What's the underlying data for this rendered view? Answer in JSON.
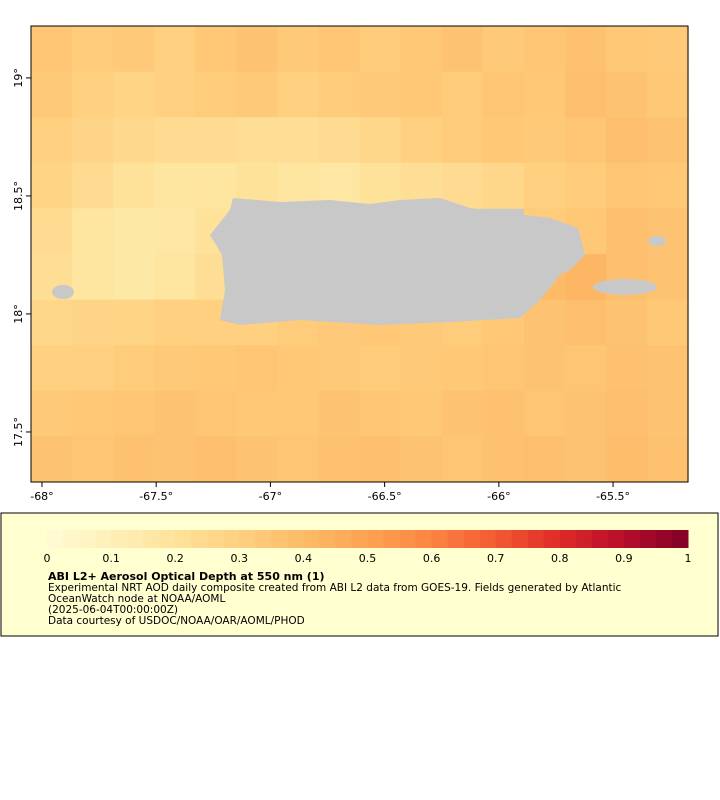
{
  "chart_data": {
    "type": "heatmap",
    "xlim": [
      -68.048,
      -65.172
    ],
    "ylim": [
      17.288,
      19.22
    ],
    "xticks": [
      {
        "value": -68,
        "label": "-68°"
      },
      {
        "value": -67.5,
        "label": "-67.5°"
      },
      {
        "value": -67,
        "label": "-67°"
      },
      {
        "value": -66.5,
        "label": "-66.5°"
      },
      {
        "value": -66,
        "label": "-66°"
      },
      {
        "value": -65.5,
        "label": "-65.5°"
      }
    ],
    "yticks": [
      {
        "value": 17.5,
        "label": "17.5°"
      },
      {
        "value": 18,
        "label": "18°"
      },
      {
        "value": 18.5,
        "label": "18.5°"
      },
      {
        "value": 19,
        "label": "19°"
      }
    ],
    "x": [
      -67.958,
      -67.778,
      -67.598,
      -67.419,
      -67.239,
      -67.059,
      -66.879,
      -66.699,
      -66.52,
      -66.34,
      -66.16,
      -65.98,
      -65.8,
      -65.621,
      -65.441,
      -65.261
    ],
    "y": [
      19.123,
      18.93,
      18.737,
      18.544,
      18.351,
      18.157,
      17.964,
      17.771,
      17.578,
      17.385
    ],
    "z": [
      [
        0.35,
        0.32,
        0.33,
        0.3,
        0.34,
        0.36,
        0.33,
        0.35,
        0.32,
        0.34,
        0.36,
        0.33,
        0.35,
        0.37,
        0.34,
        0.33
      ],
      [
        0.33,
        0.3,
        0.28,
        0.3,
        0.32,
        0.33,
        0.3,
        0.32,
        0.33,
        0.34,
        0.32,
        0.35,
        0.34,
        0.38,
        0.36,
        0.34
      ],
      [
        0.3,
        0.27,
        0.25,
        0.24,
        0.24,
        0.22,
        0.22,
        0.24,
        0.26,
        0.3,
        0.32,
        0.34,
        0.33,
        0.35,
        0.38,
        0.36
      ],
      [
        0.28,
        0.24,
        0.2,
        0.18,
        0.18,
        0.2,
        0.18,
        0.17,
        0.2,
        0.22,
        0.24,
        0.26,
        0.3,
        0.32,
        0.35,
        0.34
      ],
      [
        0.24,
        0.18,
        0.16,
        0.17,
        0.2,
        null,
        null,
        null,
        null,
        null,
        null,
        null,
        0.32,
        0.34,
        0.38,
        0.36
      ],
      [
        0.22,
        0.18,
        0.16,
        0.18,
        0.22,
        null,
        null,
        null,
        null,
        null,
        null,
        null,
        0.4,
        0.42,
        0.38,
        0.36
      ],
      [
        0.26,
        0.27,
        0.28,
        0.3,
        0.3,
        0.3,
        0.32,
        0.33,
        0.34,
        0.33,
        0.32,
        0.34,
        0.36,
        0.38,
        0.36,
        0.34
      ],
      [
        0.3,
        0.3,
        0.32,
        0.33,
        0.34,
        0.35,
        0.34,
        0.33,
        0.32,
        0.33,
        0.34,
        0.35,
        0.36,
        0.35,
        0.37,
        0.36
      ],
      [
        0.33,
        0.34,
        0.35,
        0.36,
        0.35,
        0.34,
        0.34,
        0.36,
        0.35,
        0.34,
        0.36,
        0.37,
        0.35,
        0.36,
        0.38,
        0.36
      ],
      [
        0.36,
        0.35,
        0.37,
        0.36,
        0.38,
        0.36,
        0.35,
        0.37,
        0.38,
        0.36,
        0.35,
        0.37,
        0.38,
        0.36,
        0.39,
        0.37
      ]
    ],
    "colors": [
      "#fffbd6",
      "#fff0b8",
      "#fee29a",
      "#fed080",
      "#fdbb68",
      "#fca352",
      "#fb8442",
      "#f45a32",
      "#de2a26",
      "#b70c2c",
      "#800026"
    ],
    "colorbar": {
      "lim": [
        0,
        1
      ],
      "ticks": [
        0,
        0.1,
        0.2,
        0.3,
        0.4,
        0.5,
        0.6,
        0.7,
        0.8,
        0.9,
        1
      ]
    },
    "title": "ABI L2+ Aerosol Optical Depth at 550 nm (1)",
    "description": [
      "Experimental NRT AOD daily composite created from ABI L2 data from GOES-19. Fields generated by Atlantic",
      "OceanWatch node at NOAA/AOML",
      "(2025-06-04T00:00:00Z)",
      "Data courtesy of USDOC/NOAA/OAR/AOML/PHOD"
    ]
  }
}
